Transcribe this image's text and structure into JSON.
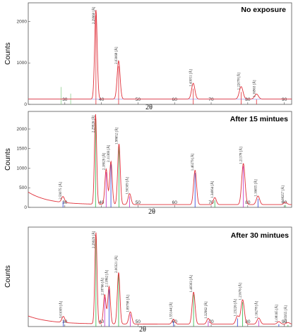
{
  "chart_data": [
    {
      "type": "line",
      "title": "No exposure",
      "ylabel": "Counts",
      "xlabel": "2θ",
      "xlim": [
        20,
        92
      ],
      "ylim": [
        0,
        2450
      ],
      "x_ticks": [
        "30",
        "40",
        "50",
        "60",
        "70",
        "80",
        "90"
      ],
      "y_ticks": [
        {
          "value": 0,
          "label": "0"
        },
        {
          "value": 1000,
          "label": "1000"
        },
        {
          "value": 2000,
          "label": "2000"
        }
      ],
      "colors": {
        "profile": "#e0303a",
        "stick": "#e0303a",
        "minor_stick": "#8fcf8f",
        "baseline": "#3a3ad8"
      },
      "baseline": 130,
      "peaks": [
        {
          "x": 38.5,
          "height": 2150,
          "width": 0.35,
          "label": "2.29960 [Å]"
        },
        {
          "x": 44.7,
          "height": 920,
          "width": 0.4,
          "label": "2.03068 [Å]"
        },
        {
          "x": 65.1,
          "height": 380,
          "width": 0.45,
          "label": "1.43051 [Å]"
        },
        {
          "x": 78.2,
          "height": 300,
          "width": 0.5,
          "label": "1.22078 [Å]"
        },
        {
          "x": 82.4,
          "height": 120,
          "width": 0.5,
          "label": "1.16963 [Å]"
        }
      ],
      "minor_sticks": [
        {
          "x": 29.0,
          "height": 420
        },
        {
          "x": 31.6,
          "height": 260
        }
      ]
    },
    {
      "type": "line",
      "title": "After 15 mintues",
      "ylabel": "Counts",
      "xlabel": "2θ",
      "xlim": [
        20,
        92
      ],
      "ylim": [
        0,
        2450
      ],
      "x_ticks": [
        "30",
        "40",
        "50",
        "60",
        "70",
        "80",
        "90"
      ],
      "y_ticks": [
        {
          "value": 0,
          "label": "0"
        },
        {
          "value": 500,
          "label": "500"
        },
        {
          "value": 1000,
          "label": "1000"
        },
        {
          "value": 1500,
          "label": "1500"
        },
        {
          "value": 2000,
          "label": "2000"
        }
      ],
      "colors": {
        "profile": "#e0303a",
        "stick_blue": "#2d3fd6",
        "stick_green": "#2eb84a",
        "stick_magenta": "#c030c8"
      },
      "baseline": 70,
      "hump": {
        "start_height": 320,
        "decay": 5.5
      },
      "peaks": [
        {
          "x": 29.5,
          "height": 150,
          "width": 0.4,
          "label": "2.59075 [Å]"
        },
        {
          "x": 38.4,
          "height": 2300,
          "width": 0.3,
          "label": "2.29926 [Å]"
        },
        {
          "x": 41.3,
          "height": 900,
          "width": 0.35,
          "label": "2.18029 [Å]"
        },
        {
          "x": 42.6,
          "height": 1100,
          "width": 0.35,
          "label": "2.11369 [Å]"
        },
        {
          "x": 44.8,
          "height": 1550,
          "width": 0.35,
          "label": "1.98652 [Å]"
        },
        {
          "x": 47.7,
          "height": 280,
          "width": 0.4,
          "label": "1.90309 [Å]"
        },
        {
          "x": 65.6,
          "height": 880,
          "width": 0.4,
          "label": "1.40279 [Å]"
        },
        {
          "x": 71.0,
          "height": 180,
          "width": 0.4,
          "label": "1.34064 [Å]"
        },
        {
          "x": 78.8,
          "height": 1050,
          "width": 0.45,
          "label": "1.21378 [Å]"
        },
        {
          "x": 82.8,
          "height": 220,
          "width": 0.45,
          "label": "1.16655 [Å]"
        },
        {
          "x": 90.3,
          "height": 60,
          "width": 0.45,
          "label": "1.08257 [Å]"
        }
      ]
    },
    {
      "type": "line",
      "title": "After 30 mintues",
      "ylabel": "Counts",
      "xlabel": "2θ",
      "xlim": [
        20,
        92
      ],
      "ylim": [
        0,
        2450
      ],
      "x_ticks": [
        "30",
        "40",
        "50",
        "60",
        "70",
        "80",
        "90"
      ],
      "y_ticks": [],
      "colors": {
        "profile": "#e0303a",
        "stick_blue": "#2d3fd6",
        "stick_green": "#2eb84a",
        "stick_magenta": "#c030c8"
      },
      "baseline": 60,
      "hump": {
        "start_height": 200,
        "decay": 6
      },
      "peaks": [
        {
          "x": 29.6,
          "height": 150,
          "width": 0.4,
          "label": "3.01009 [Å]"
        },
        {
          "x": 38.5,
          "height": 2250,
          "width": 0.3,
          "label": "2.29929 [Å]"
        },
        {
          "x": 40.9,
          "height": 720,
          "width": 0.35,
          "label": "2.18766 [Å]"
        },
        {
          "x": 42.1,
          "height": 920,
          "width": 0.35,
          "label": "2.11862 [Å]"
        },
        {
          "x": 44.7,
          "height": 1270,
          "width": 0.35,
          "label": "2.00321 [Å]"
        },
        {
          "x": 47.9,
          "height": 300,
          "width": 0.4,
          "label": "1.89798 [Å]"
        },
        {
          "x": 59.7,
          "height": 120,
          "width": 0.4,
          "label": "1.55144 [Å]"
        },
        {
          "x": 65.2,
          "height": 790,
          "width": 0.4,
          "label": "1.40303 [Å]"
        },
        {
          "x": 69.2,
          "height": 140,
          "width": 0.4,
          "label": "1.32962 [Å]"
        },
        {
          "x": 77.2,
          "height": 200,
          "width": 0.45,
          "label": "1.23226 [Å]"
        },
        {
          "x": 78.6,
          "height": 600,
          "width": 0.45,
          "label": "1.21676 [Å]"
        },
        {
          "x": 83.0,
          "height": 150,
          "width": 0.45,
          "label": "1.16278 [Å]"
        },
        {
          "x": 88.5,
          "height": 60,
          "width": 0.45,
          "label": "1.08165 [Å]"
        },
        {
          "x": 91.0,
          "height": 40,
          "width": 0.45,
          "label": "1.05955 [Å]"
        }
      ]
    }
  ]
}
